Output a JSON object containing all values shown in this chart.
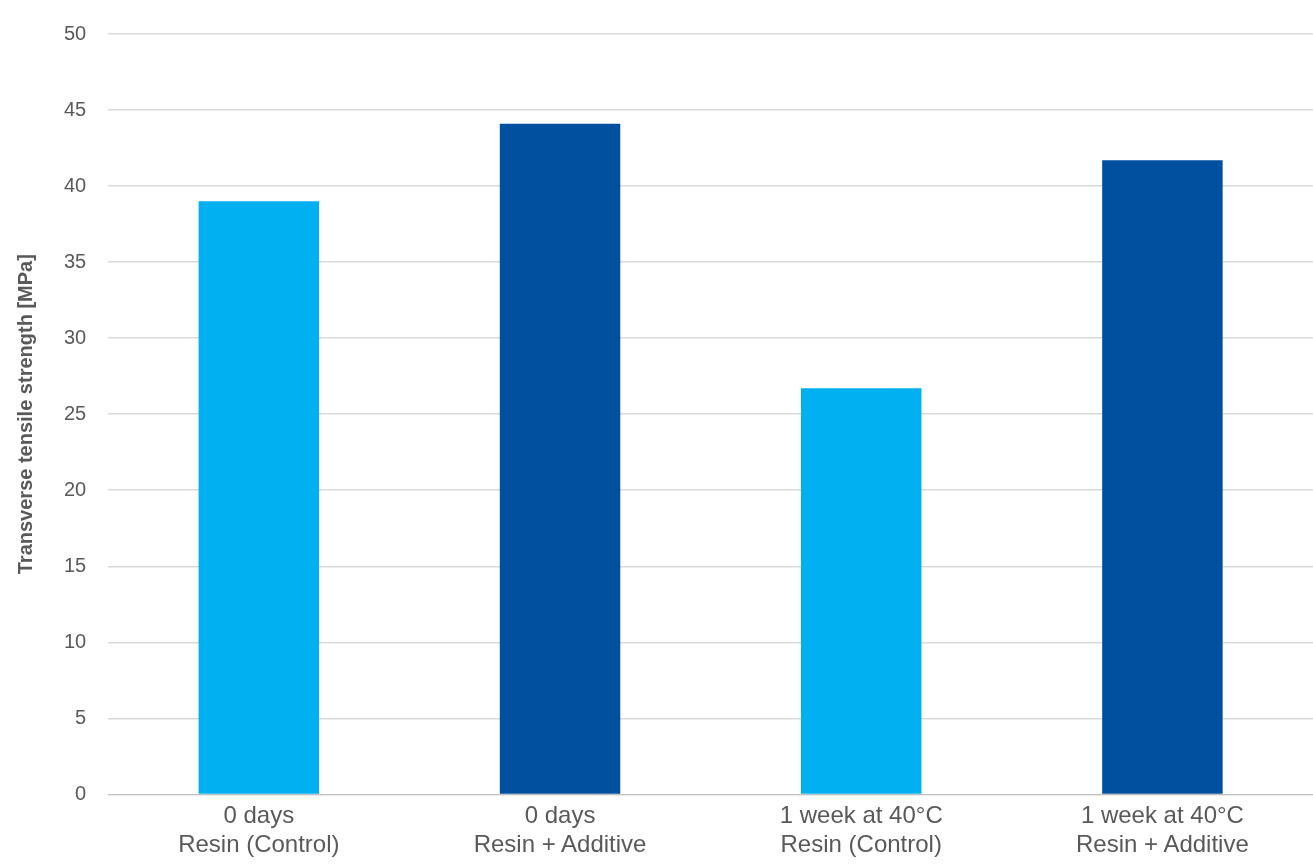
{
  "chart_data": {
    "type": "bar",
    "ylabel": "Transverse tensile strength [MPa]",
    "categories": [
      "0 days\nResin (Control)",
      "0 days\nResin + Additive",
      "1 week at 40°C\nResin (Control)",
      "1 week at 40°C\nResin + Additive"
    ],
    "values": [
      39.0,
      44.1,
      26.7,
      41.7
    ],
    "colors": [
      "#00b0f0",
      "#0050a0",
      "#00b0f0",
      "#0050a0"
    ],
    "ylim": [
      0,
      50
    ],
    "yticks": [
      0,
      5,
      10,
      15,
      20,
      25,
      30,
      35,
      40,
      45,
      50
    ],
    "grid": "y",
    "legend": false
  }
}
